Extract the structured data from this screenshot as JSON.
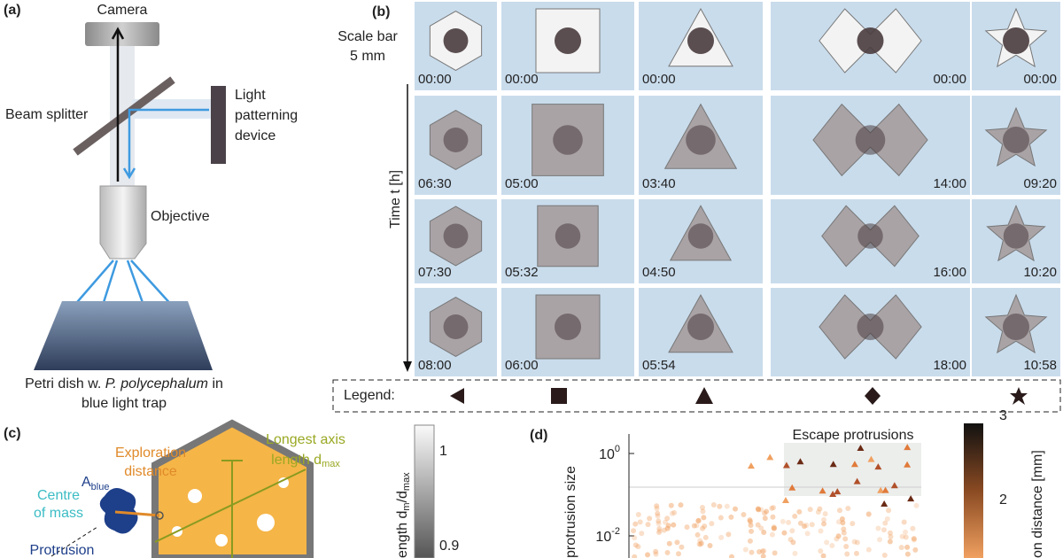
{
  "panel_a": {
    "label": "(a)",
    "camera": "Camera",
    "beam_splitter": "Beam splitter",
    "light_device": [
      "Light",
      "patterning",
      "device"
    ],
    "objective": "Objective",
    "caption": {
      "pre": "Petri dish w. ",
      "italic": "P. polycephalum",
      "post": " in",
      "line2": "blue light trap"
    }
  },
  "panel_b": {
    "label": "(b)",
    "scale_bar": [
      "Scale bar",
      "5 mm"
    ],
    "time_axis": "Time t [h]",
    "times": [
      [
        "00:00",
        "06:30",
        "07:30",
        "08:00"
      ],
      [
        "00:00",
        "05:00",
        "05:32",
        "06:00"
      ],
      [
        "00:00",
        "03:40",
        "04:50",
        "05:54"
      ],
      [
        "00:00",
        "14:00",
        "16:00",
        "18:00"
      ],
      [
        "00:00",
        "09:20",
        "10:20",
        "10:58"
      ]
    ],
    "legend": "Legend:"
  },
  "panel_c": {
    "label": "(c)",
    "exploration": [
      "Exploration",
      "distance"
    ],
    "longest_axis": [
      "Longest axis",
      "length d",
      "max"
    ],
    "a_blue": [
      "A",
      "blue"
    ],
    "centre": [
      "Centre",
      "of mass"
    ],
    "protrusion": "Protrusion",
    "colorbar_ticks": [
      "1",
      "0.9"
    ],
    "colorbar_label": [
      "ength d",
      "m",
      "/d",
      "max"
    ]
  },
  "panel_d": {
    "label": "(d)",
    "y_label": "protrusion size",
    "y_ticks": [
      {
        "base": "10",
        "exp": "0"
      },
      {
        "base": "10",
        "exp": "-2"
      }
    ],
    "inset": "Escape protrusions",
    "colorbar_ticks": [
      "3",
      "2"
    ],
    "colorbar_label": "on distance [mm]"
  }
}
